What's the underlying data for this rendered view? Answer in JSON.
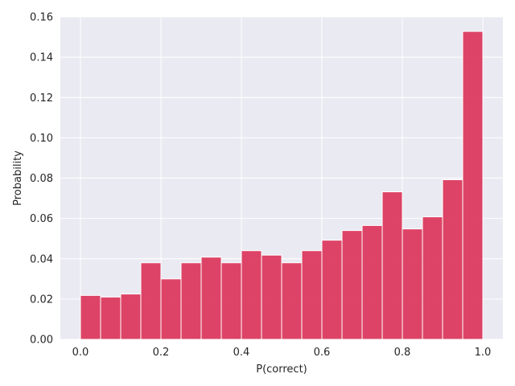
{
  "chart_data": {
    "type": "bar",
    "title": "",
    "xlabel": "P(correct)",
    "ylabel": "Probability",
    "xlim": [
      -0.05,
      1.05
    ],
    "ylim": [
      0,
      0.16
    ],
    "grid": true,
    "bar_color": "#dc3a5e",
    "background_color": "#eaeaf2",
    "grid_color": "#ffffff",
    "x_ticks": [
      {
        "value": 0.0,
        "label": "0.0"
      },
      {
        "value": 0.2,
        "label": "0.2"
      },
      {
        "value": 0.4,
        "label": "0.4"
      },
      {
        "value": 0.6,
        "label": "0.6"
      },
      {
        "value": 0.8,
        "label": "0.8"
      },
      {
        "value": 1.0,
        "label": "1.0"
      }
    ],
    "y_ticks": [
      {
        "value": 0.0,
        "label": "0.00"
      },
      {
        "value": 0.02,
        "label": "0.02"
      },
      {
        "value": 0.04,
        "label": "0.04"
      },
      {
        "value": 0.06,
        "label": "0.06"
      },
      {
        "value": 0.08,
        "label": "0.08"
      },
      {
        "value": 0.1,
        "label": "0.10"
      },
      {
        "value": 0.12,
        "label": "0.12"
      },
      {
        "value": 0.14,
        "label": "0.14"
      },
      {
        "value": 0.16,
        "label": "0.16"
      }
    ],
    "bin_edges": [
      0.0,
      0.05,
      0.1,
      0.15,
      0.2,
      0.25,
      0.3,
      0.35,
      0.4,
      0.45,
      0.5,
      0.55,
      0.6,
      0.65,
      0.7,
      0.75,
      0.8,
      0.85,
      0.9,
      0.95,
      1.0
    ],
    "values": [
      0.0218,
      0.021,
      0.0225,
      0.038,
      0.03,
      0.038,
      0.0408,
      0.038,
      0.044,
      0.0418,
      0.038,
      0.044,
      0.0492,
      0.054,
      0.0565,
      0.0732,
      0.0548,
      0.0608,
      0.0792,
      0.1528
    ]
  }
}
